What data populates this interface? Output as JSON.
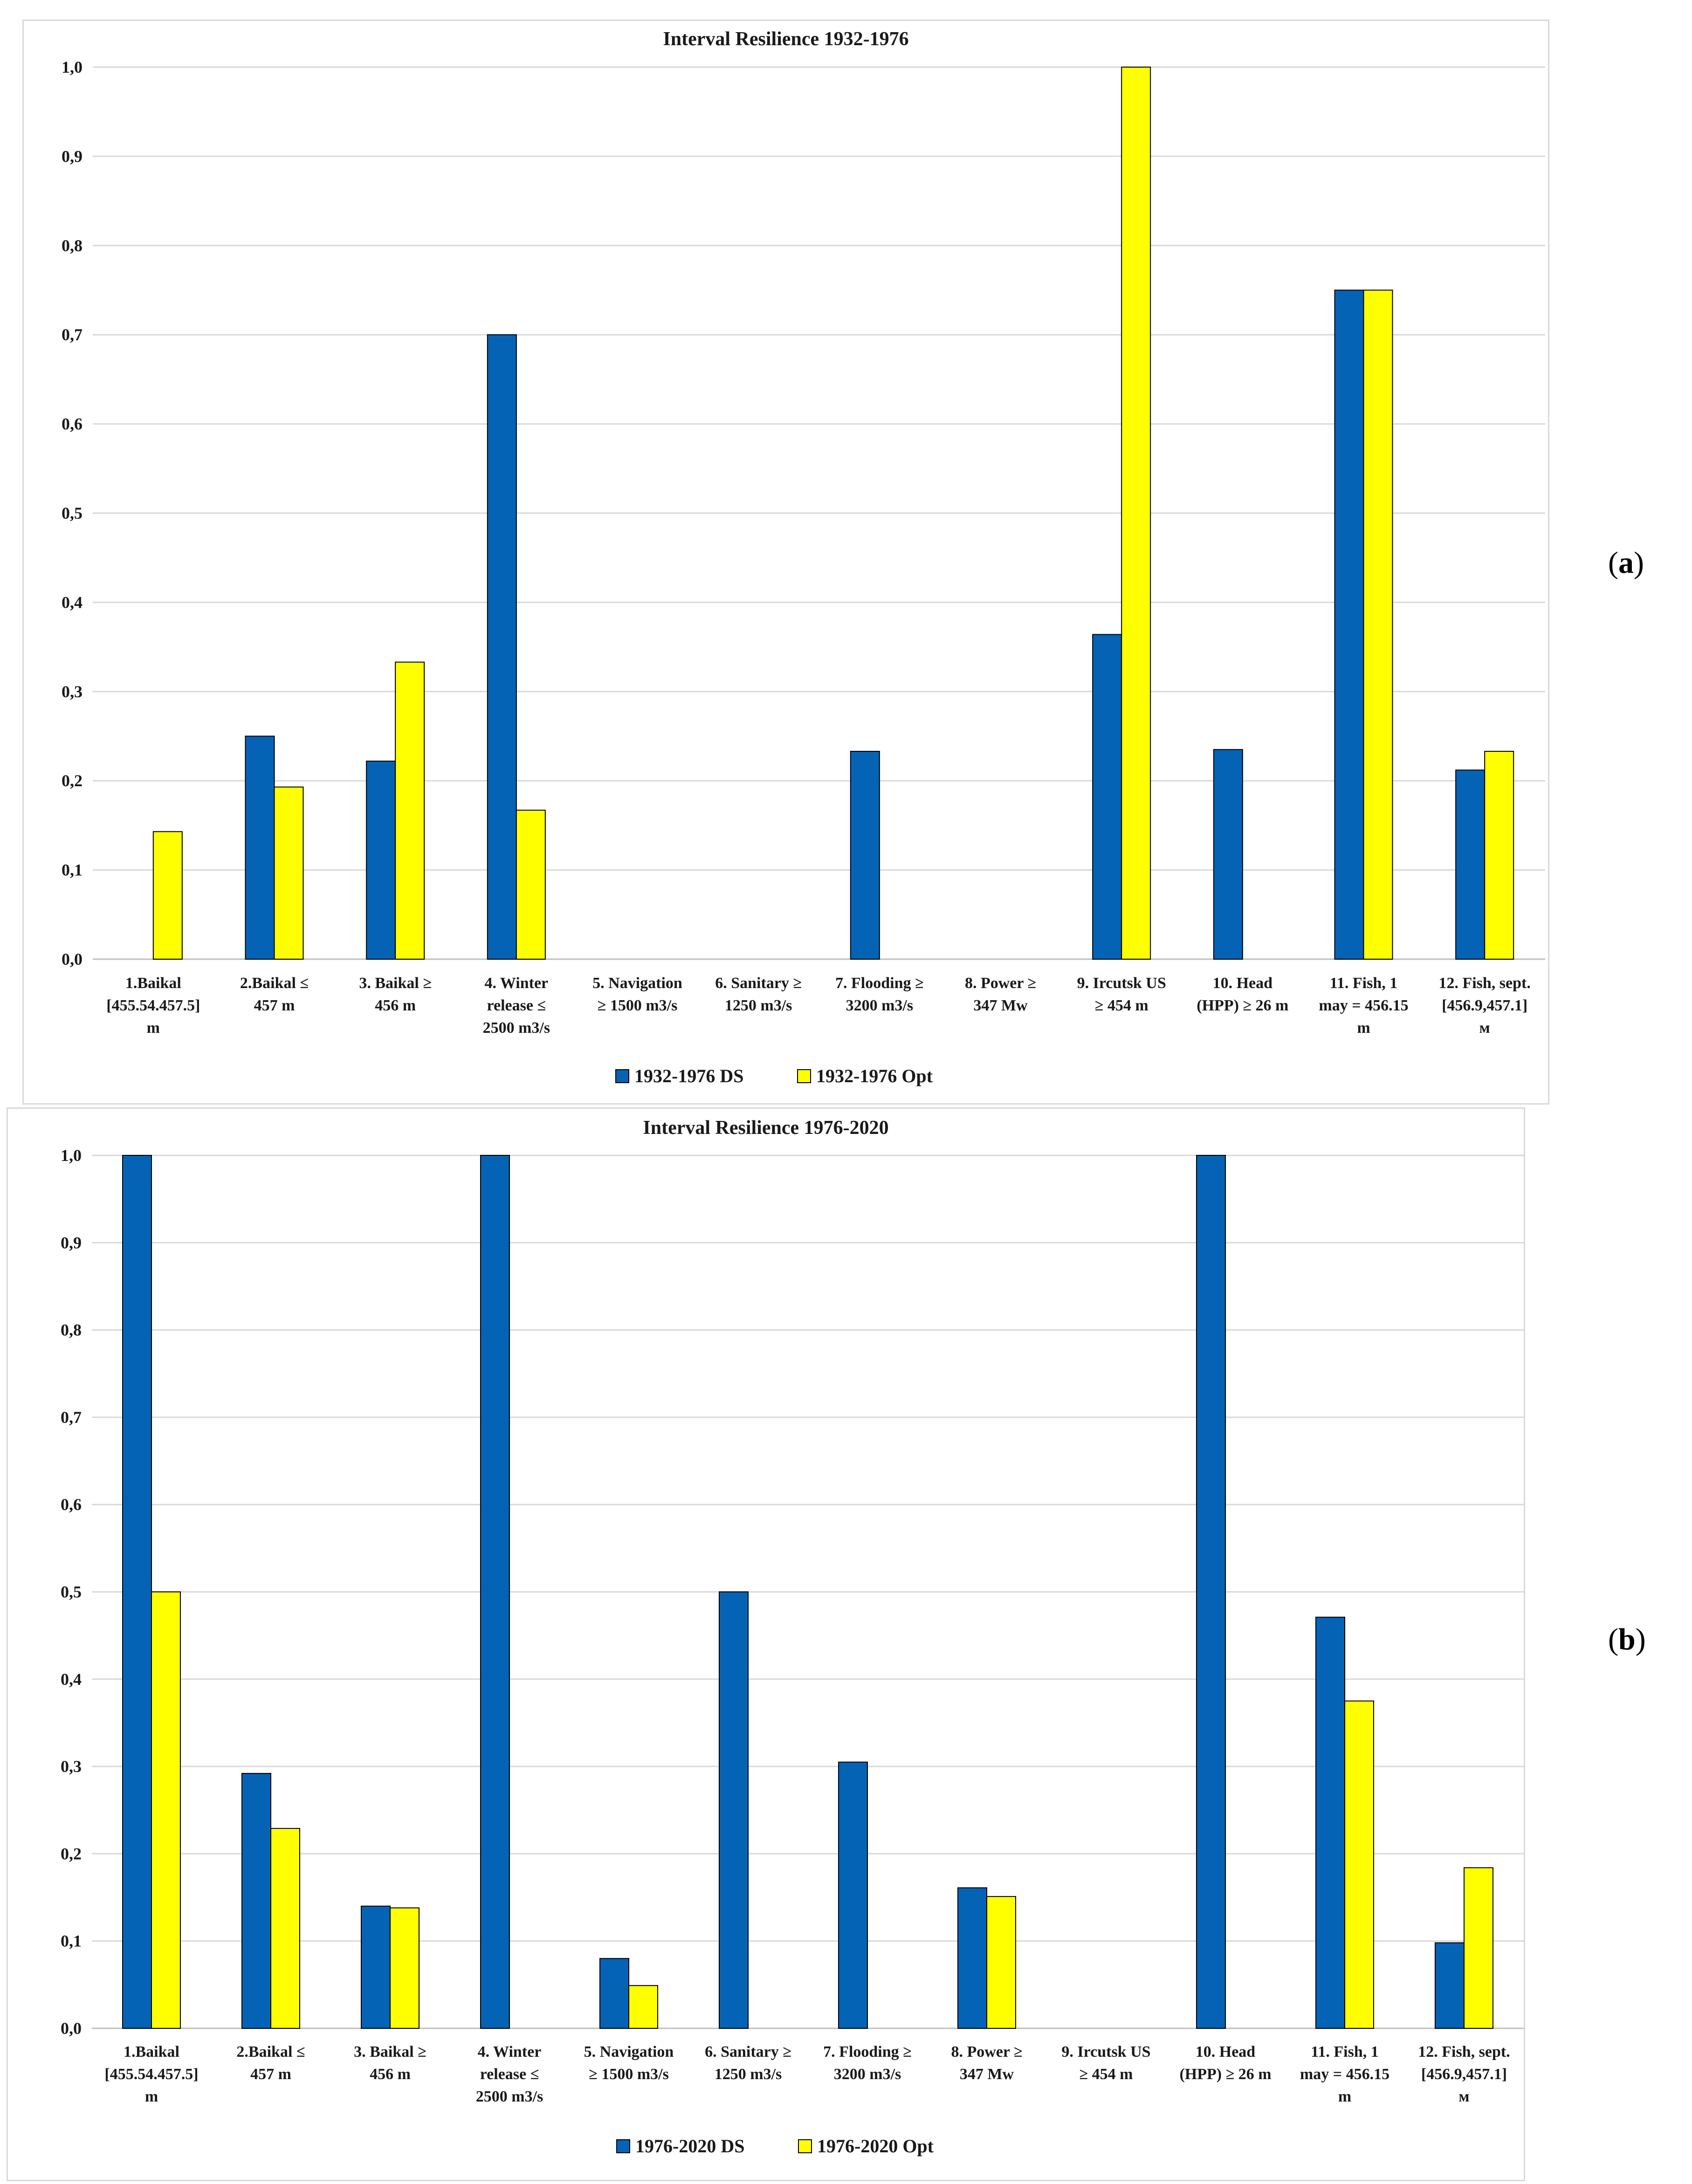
{
  "panel_labels": [
    {
      "open": "(",
      "letter": "a",
      "close": ")"
    },
    {
      "open": "(",
      "letter": "b",
      "close": ")"
    }
  ],
  "chart_data": [
    {
      "type": "bar",
      "title": "Interval Resilience 1932-1976",
      "xlabel": "",
      "ylabel": "",
      "ylim": [
        0,
        1
      ],
      "y_ticks": [
        "0,0",
        "0,1",
        "0,2",
        "0,3",
        "0,4",
        "0,5",
        "0,6",
        "0,7",
        "0,8",
        "0,9",
        "1,0"
      ],
      "grid": true,
      "legend_position": "bottom",
      "categories": [
        [
          "1.Baikal",
          "[455.54.457.5]",
          "m"
        ],
        [
          "2.Baikal ≤",
          "457 m"
        ],
        [
          "3. Baikal ≥",
          "456 m"
        ],
        [
          "4. Winter",
          "release ≤",
          "2500 m3/s"
        ],
        [
          "5. Navigation",
          "≥ 1500 m3/s"
        ],
        [
          "6. Sanitary ≥",
          "1250 m3/s"
        ],
        [
          "7. Flooding ≥",
          "3200 m3/s"
        ],
        [
          "8. Power ≥",
          "347 Mw"
        ],
        [
          "9. Ircutsk US",
          "≥ 454 m"
        ],
        [
          "10. Head",
          "(HPP) ≥ 26 m"
        ],
        [
          "11. Fish, 1",
          "may = 456.15",
          "m"
        ],
        [
          "12. Fish, sept.",
          "[456.9,457.1]",
          "м"
        ]
      ],
      "series": [
        {
          "name": "1932-1976 DS",
          "color": "#0563b6",
          "values": [
            0,
            0.25,
            0.222,
            0.7,
            0,
            0,
            0.233,
            0,
            0.364,
            0.235,
            0.75,
            0.212
          ]
        },
        {
          "name": "1932-1976 Opt",
          "color": "#ffff00",
          "values": [
            0.143,
            0.193,
            0.333,
            0.167,
            0,
            0,
            0,
            0,
            1.0,
            0,
            0.75,
            0.233
          ]
        }
      ]
    },
    {
      "type": "bar",
      "title": "Interval Resilience 1976-2020",
      "xlabel": "",
      "ylabel": "",
      "ylim": [
        0,
        1
      ],
      "y_ticks": [
        "0,0",
        "0,1",
        "0,2",
        "0,3",
        "0,4",
        "0,5",
        "0,6",
        "0,7",
        "0,8",
        "0,9",
        "1,0"
      ],
      "grid": true,
      "legend_position": "bottom",
      "categories": [
        [
          "1.Baikal",
          "[455.54.457.5]",
          "m"
        ],
        [
          "2.Baikal ≤",
          "457 m"
        ],
        [
          "3. Baikal ≥",
          "456 m"
        ],
        [
          "4. Winter",
          "release ≤",
          "2500 m3/s"
        ],
        [
          "5. Navigation",
          "≥ 1500 m3/s"
        ],
        [
          "6. Sanitary ≥",
          "1250 m3/s"
        ],
        [
          "7. Flooding ≥",
          "3200 m3/s"
        ],
        [
          "8. Power ≥",
          "347 Mw"
        ],
        [
          "9. Ircutsk US",
          "≥ 454 m"
        ],
        [
          "10. Head",
          "(HPP) ≥ 26 m"
        ],
        [
          "11. Fish, 1",
          "may = 456.15",
          "m"
        ],
        [
          "12. Fish, sept.",
          "[456.9,457.1]",
          "м"
        ]
      ],
      "series": [
        {
          "name": "1976-2020 DS",
          "color": "#0563b6",
          "values": [
            1.0,
            0.292,
            0.14,
            1.0,
            0.08,
            0.5,
            0.305,
            0.161,
            0,
            1.0,
            0.471,
            0.098
          ]
        },
        {
          "name": "1976-2020 Opt",
          "color": "#ffff00",
          "values": [
            0.5,
            0.229,
            0.138,
            0,
            0.049,
            0,
            0,
            0.151,
            0,
            0,
            0.375,
            0.184
          ]
        }
      ]
    }
  ]
}
